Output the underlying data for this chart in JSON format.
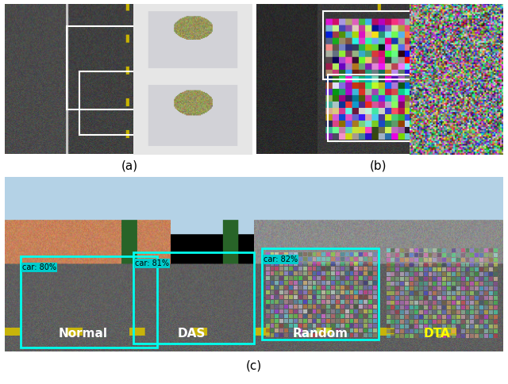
{
  "title": "",
  "fig_width": 6.4,
  "fig_height": 4.84,
  "dpi": 100,
  "background_color": "#ffffff",
  "label_a": "(a)",
  "label_b": "(b)",
  "label_c": "(c)",
  "label_fontsize": 11,
  "panel_c_labels": [
    "Normal",
    "DAS",
    "Random",
    "DTA"
  ],
  "panel_c_label_colors": [
    "#ffffff",
    "#ffffff",
    "#ffffff",
    "#ffff00"
  ],
  "panel_c_label_fontsize": 11,
  "panel_c_detections": [
    "car: 80%",
    "car: 81%",
    "car: 82%"
  ],
  "detection_bg_color": "#00cccc",
  "detection_text_color": "#000000",
  "detection_fontsize": 7,
  "box_color_white": "#ffffff",
  "box_color_cyan": "#00ffff",
  "outer_border_color": "#1a1a1a",
  "border_lw": 1.5
}
